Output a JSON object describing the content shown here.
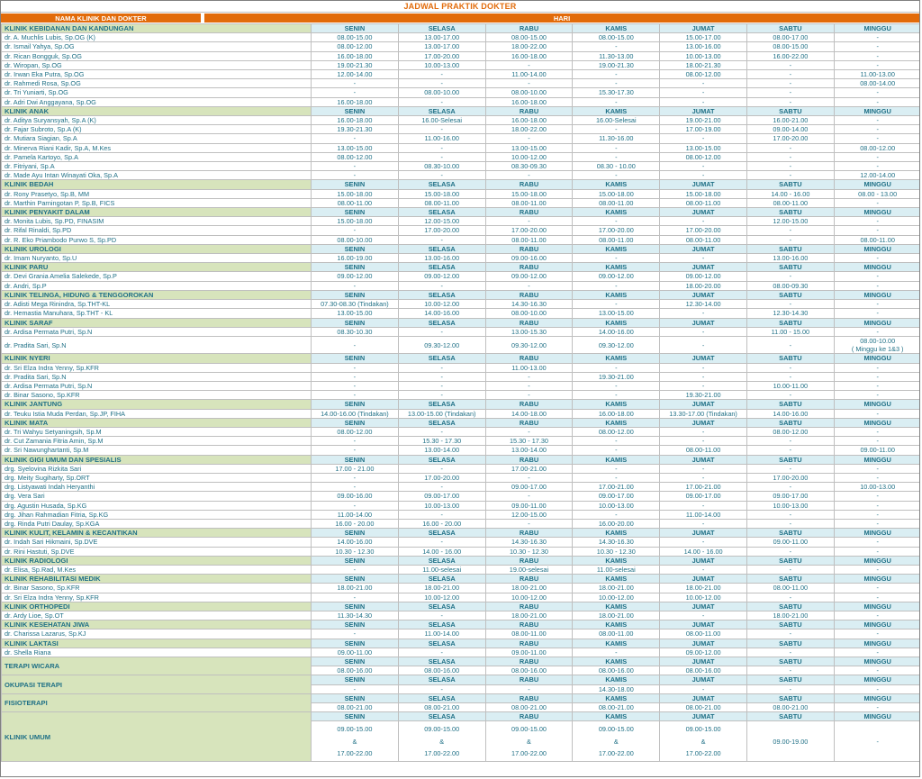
{
  "title": "JADWAL PRAKTIK DOKTER",
  "header": {
    "col1": "NAMA KLINIK DAN DOKTER",
    "col2": "HARI"
  },
  "days": [
    "SENIN",
    "SELASA",
    "RABU",
    "KAMIS",
    "JUMAT",
    "SABTU",
    "MINGGU"
  ],
  "colors": {
    "accent_orange": "#E26B0A",
    "clinic_green": "#D7E4BC",
    "day_blue": "#DAEEF3",
    "text_teal": "#1F7086"
  },
  "sections": [
    {
      "name": "KLINIK KEBIDANAN DAN KANDUNGAN",
      "rows": [
        {
          "name": "dr. A. Muchlis Lubis, Sp.OG (K)",
          "times": [
            "08.00-15.00",
            "13.00-17.00",
            "08.00-15.00",
            "08.00-15.00",
            "15.00-17.00",
            "08.00-17.00",
            "-"
          ]
        },
        {
          "name": "dr. Ismail Yahya, Sp.OG",
          "times": [
            "08.00-12.00",
            "13.00-17.00",
            "18.00-22.00",
            "-",
            "13.00-16.00",
            "08.00-15.00",
            "-"
          ]
        },
        {
          "name": "dr. Rican Bongguk, Sp.OG",
          "times": [
            "16.00-18.00",
            "17.00-20.00",
            "16.00-18.00",
            "11.30-13.00",
            "10.00-13.00",
            "16.00-22.00",
            "-"
          ]
        },
        {
          "name": "dr. Wiropan, Sp.OG",
          "times": [
            "19.00-21.30",
            "10.00-13.00",
            "-",
            "19.00-21.30",
            "18.00-21.30",
            "-",
            "-"
          ]
        },
        {
          "name": "dr. Irwan Eka Putra, Sp.OG",
          "times": [
            "12.00-14.00",
            "-",
            "11.00-14.00",
            "-",
            "08.00-12.00",
            "-",
            "11.00-13.00"
          ]
        },
        {
          "name": "dr. Rahmedi Rosa, Sp.OG",
          "times": [
            "-",
            "-",
            "-",
            "-",
            "-",
            "-",
            "08.00-14.00"
          ]
        },
        {
          "name": "dr. Tri Yuniarti, Sp.OG",
          "times": [
            "-",
            "08.00-10.00",
            "08.00-10.00",
            "15.30-17.30",
            "-",
            "-",
            "-"
          ]
        },
        {
          "name": "dr. Adri Dwi Anggayana, Sp.OG",
          "times": [
            "16.00-18.00",
            "-",
            "16.00-18.00",
            "-",
            "-",
            "-",
            "-"
          ]
        }
      ]
    },
    {
      "name": "KLINIK ANAK",
      "rows": [
        {
          "name": "dr. Aditya Suryansyah, Sp.A (K)",
          "times": [
            "16.00-18.00",
            "16.00-Selesai",
            "16.00-18.00",
            "16.00-Selesai",
            "19.00-21.00",
            "16.00-21.00",
            "-"
          ]
        },
        {
          "name": "dr. Fajar Subroto, Sp.A (K)",
          "times": [
            "19.30-21.30",
            "-",
            "18.00-22.00",
            "-",
            "17.00-19.00",
            "09.00-14.00",
            "-"
          ]
        },
        {
          "name": "dr. Mutiara Siagian, Sp.A",
          "times": [
            "-",
            "11.00-16.00",
            "-",
            "11.30-16.00",
            "-",
            "17.00-20.00",
            "-"
          ]
        },
        {
          "name": "dr. Minerva Riani Kadir, Sp.A, M.Kes",
          "times": [
            "13.00-15.00",
            "-",
            "13.00-15.00",
            "-",
            "13.00-15.00",
            "-",
            "08.00-12.00"
          ]
        },
        {
          "name": "dr. Pamela Kartoyo, Sp.A",
          "times": [
            "08.00-12.00",
            "-",
            "10.00-12.00",
            "-",
            "08.00-12.00",
            "-",
            "-"
          ]
        },
        {
          "name": "dr. Fitriyani, Sp.A",
          "times": [
            "-",
            "08.30-10.00",
            "08.30-09.30",
            "08.30 - 10.00",
            "-",
            "-",
            "-"
          ]
        },
        {
          "name": "dr. Made Ayu Intan Winayati Oka, Sp.A",
          "times": [
            "-",
            "-",
            "-",
            "-",
            "-",
            "-",
            "12.00-14.00"
          ]
        }
      ]
    },
    {
      "name": "KLINIK BEDAH",
      "rows": [
        {
          "name": "dr. Rony Prasetyo, Sp.B, MM",
          "times": [
            "15.00-18.00",
            "15.00-18.00",
            "15.00-18.00",
            "15.00-18.00",
            "15.00-18.00",
            "14.00 - 16.00",
            "08.00 - 13.00"
          ]
        },
        {
          "name": "dr. Marthin Parningotan P, Sp.B, FICS",
          "times": [
            "08.00-11.00",
            "08.00-11.00",
            "08.00-11.00",
            "08.00-11.00",
            "08.00-11.00",
            "08.00-11.00",
            "-"
          ]
        }
      ]
    },
    {
      "name": "KLINIK PENYAKIT DALAM",
      "rows": [
        {
          "name": "dr. Monita Lubis, Sp.PD, FINASIM",
          "times": [
            "15.00-18.00",
            "12.00-15.00",
            "-",
            "-",
            "-",
            "12.00-15.00",
            "-"
          ]
        },
        {
          "name": "dr. Rifal Rinaldi, Sp.PD",
          "times": [
            "-",
            "17.00-20.00",
            "17.00-20.00",
            "17.00-20.00",
            "17.00-20.00",
            "-",
            "-"
          ]
        },
        {
          "name": "dr. R. Eko Priambodo Purwo S, Sp.PD",
          "times": [
            "08.00-10.00",
            "-",
            "08.00-11.00",
            "08.00-11.00",
            "08.00-11.00",
            "-",
            "08.00-11.00"
          ]
        }
      ]
    },
    {
      "name": "KLINIK UROLOGI",
      "rows": [
        {
          "name": "dr. Imam Nuryanto, Sp.U",
          "times": [
            "16.00-19.00",
            "13.00-16.00",
            "09.00-16.00",
            "-",
            "-",
            "13.00-16.00",
            "-"
          ]
        }
      ]
    },
    {
      "name": "KLINIK PARU",
      "rows": [
        {
          "name": "dr. Devi Grania Amelia Salekede, Sp.P",
          "times": [
            "09.00-12.00",
            "09.00-12.00",
            "09.00-12.00",
            "09.00-12.00",
            "09.00-12.00",
            "-",
            "-"
          ]
        },
        {
          "name": "dr. Andri, Sp.P",
          "times": [
            "-",
            "-",
            "-",
            "-",
            "18.00-20.00",
            "08.00-09.30",
            "-"
          ]
        }
      ]
    },
    {
      "name": "KLINIK TELINGA, HIDUNG & TENGGOROKAN",
      "rows": [
        {
          "name": "dr. Adisti Mega Rinindra, Sp.THT-KL",
          "times": [
            "07.30-08.30 (Tindakan)",
            "10.00-12.00",
            "14.30-16.30",
            "-",
            "12.30-14.00",
            "-",
            "-"
          ]
        },
        {
          "name": "dr. Hemastia Manuhara, Sp.THT - KL",
          "times": [
            "13.00-15.00",
            "14.00-16.00",
            "08.00-10.00",
            "13.00-15.00",
            "-",
            "12.30-14.30",
            "-"
          ]
        }
      ]
    },
    {
      "name": "KLINIK SARAF",
      "rows": [
        {
          "name": "dr. Ardisa Permata Putri, Sp.N",
          "times": [
            "08.30-10.30",
            "-",
            "13.00-15.30",
            "14.00-16.00",
            "-",
            "11.00 - 15.00",
            "-"
          ]
        },
        {
          "name": "dr. Pradita Sari, Sp.N",
          "times": [
            "-",
            "09.30-12.00",
            "09.30-12.00",
            "09.30-12.00",
            "-",
            "-",
            "08.00-10.00\n( Minggu ke 1&3 )"
          ]
        }
      ]
    },
    {
      "name": "KLINIK NYERI",
      "rows": [
        {
          "name": "dr. Sri Elza Indra Yenny, Sp.KFR",
          "times": [
            "-",
            "-",
            "11.00-13.00",
            "-",
            "-",
            "-",
            "-"
          ]
        },
        {
          "name": "dr. Pradita Sari, Sp.N",
          "times": [
            "-",
            "-",
            "-",
            "19.30-21.00",
            "-",
            "-",
            "-"
          ]
        },
        {
          "name": "dr. Ardisa Permata Putri, Sp.N",
          "times": [
            "-",
            "-",
            "-",
            "-",
            "-",
            "10.00-11.00",
            "-"
          ]
        },
        {
          "name": "dr. Binar Sasono, Sp.KFR",
          "times": [
            "-",
            "-",
            "-",
            "-",
            "19.30-21.00",
            "-",
            "-"
          ]
        }
      ]
    },
    {
      "name": "KLINIK JANTUNG",
      "rows": [
        {
          "name": "dr. Teuku Istia Muda Perdan, Sp.JP, FIHA",
          "times": [
            "14.00-16.00 (Tindakan)",
            "13.00-15.00 (Tindakan)",
            "14.00-18.00",
            "16.00-18.00",
            "13.30-17.00 (Tindakan)",
            "14.00-16.00",
            "-"
          ]
        }
      ]
    },
    {
      "name": "KLINIK MATA",
      "rows": [
        {
          "name": "dr. Tri Wahyu Setyaningsih, Sp.M",
          "times": [
            "08.00-12.00",
            "-",
            "-",
            "08.00-12.00",
            "-",
            "08.00-12.00",
            "-"
          ]
        },
        {
          "name": "dr. Cut Zamania Fitria Amin, Sp.M",
          "times": [
            "-",
            "15.30 - 17.30",
            "15.30 - 17.30",
            "-",
            "-",
            "-",
            "-"
          ]
        },
        {
          "name": "dr. Sri Nawunghartanti, Sp.M",
          "times": [
            "-",
            "13.00-14.00",
            "13.00-14.00",
            "-",
            "08.00-11.00",
            "-",
            "09.00-11.00"
          ]
        }
      ]
    },
    {
      "name": "KLINIK GIGI UMUM DAN SPESIALIS",
      "rows": [
        {
          "name": "drg. Syelovina Rizkita Sari",
          "times": [
            "17.00 - 21.00",
            "-",
            "17.00-21.00",
            "-",
            "-",
            "-",
            "-"
          ]
        },
        {
          "name": "drg. Meity Sugiharty, Sp.ORT",
          "times": [
            "-",
            "17.00-20.00",
            "-",
            "-",
            "-",
            "17.00-20.00",
            "-"
          ]
        },
        {
          "name": "drg. Listyawati Indah Heryanthi",
          "times": [
            "-",
            "-",
            "09.00-17.00",
            "17.00-21.00",
            "17.00-21.00",
            "-",
            "10.00-13.00"
          ]
        },
        {
          "name": "drg. Vera Sari",
          "times": [
            "09.00-16.00",
            "09.00-17.00",
            "-",
            "09.00-17.00",
            "09.00-17.00",
            "09.00-17.00",
            "-"
          ]
        },
        {
          "name": "drg. Agustin Husada, Sp.KG",
          "times": [
            "-",
            "10.00-13.00",
            "09.00-11.00",
            "10.00-13.00",
            "-",
            "10.00-13.00",
            "-"
          ]
        },
        {
          "name": "drg. Jihan Rahmadian Fitria, Sp.KG",
          "times": [
            "11.00-14.00",
            "-",
            "12.00-15.00",
            "-",
            "11.00-14.00",
            "-",
            "-"
          ]
        },
        {
          "name": "drg. Rinda Putri Daulay, Sp.KGA",
          "times": [
            "16.00 - 20.00",
            "16.00 - 20.00",
            "-",
            "16.00-20.00",
            "-",
            "-",
            "-"
          ]
        }
      ]
    },
    {
      "name": "KLINIK KULIT, KELAMIN & KECANTIKAN",
      "rows": [
        {
          "name": "dr. Indah Sari Hikmaini, Sp.DVE",
          "times": [
            "14.00-16.00",
            "-",
            "14.30-16.30",
            "14.30-16.30",
            "-",
            "09.00-11.00",
            "-"
          ]
        },
        {
          "name": "dr. Rini Hastuti, Sp.DVE",
          "times": [
            "10.30 - 12.30",
            "14.00 - 16.00",
            "10.30 - 12.30",
            "10.30 - 12.30",
            "14.00 - 16.00",
            "-",
            "-"
          ]
        }
      ]
    },
    {
      "name": "KLINIK RADIOLOGI",
      "rows": [
        {
          "name": "dr. Elisa, Sp.Rad, M.Kes",
          "times": [
            "-",
            "11.00-selesai",
            "19.00-selesai",
            "11.00-selesai",
            "-",
            "-",
            "-"
          ]
        }
      ]
    },
    {
      "name": "KLINIK REHABILITASI MEDIK",
      "rows": [
        {
          "name": "dr. Binar Sasono, Sp.KFR",
          "times": [
            "18.00-21.00",
            "18.00-21.00",
            "18.00-21.00",
            "18.00-21.00",
            "18.00-21.00",
            "08.00-11.00",
            "-"
          ]
        },
        {
          "name": "dr. Sri Elza Indra Yenny, Sp.KFR",
          "times": [
            "-",
            "10.00-12.00",
            "10.00-12.00",
            "10.00-12.00",
            "10.00-12.00",
            "-",
            "-"
          ]
        }
      ]
    },
    {
      "name": "KLINIK ORTHOPEDI",
      "rows": [
        {
          "name": "dr. Ardy Lioe, Sp.OT",
          "times": [
            "11.30-14.30",
            "-",
            "18.00-21.00",
            "18.00-21.00",
            "-",
            "18.00-21.00",
            "-"
          ]
        }
      ]
    },
    {
      "name": "KLINIK KESEHATAN JIWA",
      "rows": [
        {
          "name": "dr. Charissa Lazarus, Sp.KJ",
          "times": [
            "-",
            "11.00-14.00",
            "08.00-11.00",
            "08.00-11.00",
            "08.00-11.00",
            "-",
            "-"
          ]
        }
      ]
    },
    {
      "name": "KLINIK LAKTASI",
      "rows": [
        {
          "name": "dr. Shella Riana",
          "times": [
            "09.00-11.00",
            "-",
            "09.00-11.00",
            "-",
            "09.00-12.00",
            "-",
            "-"
          ]
        }
      ]
    },
    {
      "name": "TERAPI WICARA",
      "merged": true,
      "times": [
        "08.00-16.00",
        "08.00-16.00",
        "08.00-16.00",
        "08.00-16.00",
        "08.00-16.00",
        "-",
        "-"
      ]
    },
    {
      "name": "OKUPASI TERAPI",
      "merged": true,
      "times": [
        "-",
        "-",
        "-",
        "14.30-18.00",
        "-",
        "-",
        "-"
      ]
    },
    {
      "name": "FISIOTERAPI",
      "merged": true,
      "times": [
        "08.00-21.00",
        "08.00-21.00",
        "08.00-21.00",
        "08.00-21.00",
        "08.00-21.00",
        "08.00-21.00",
        "-"
      ]
    },
    {
      "name": "KLINIK UMUM",
      "merged": true,
      "tall": true,
      "times": [
        "09.00-15.00\n&\n17.00-22.00",
        "09.00-15.00\n&\n17.00-22.00",
        "09.00-15.00\n&\n17.00-22.00",
        "09.00-15.00\n&\n17.00-22.00",
        "09.00-15.00\n&\n17.00-22.00",
        "09.00-19.00",
        "-"
      ]
    }
  ]
}
